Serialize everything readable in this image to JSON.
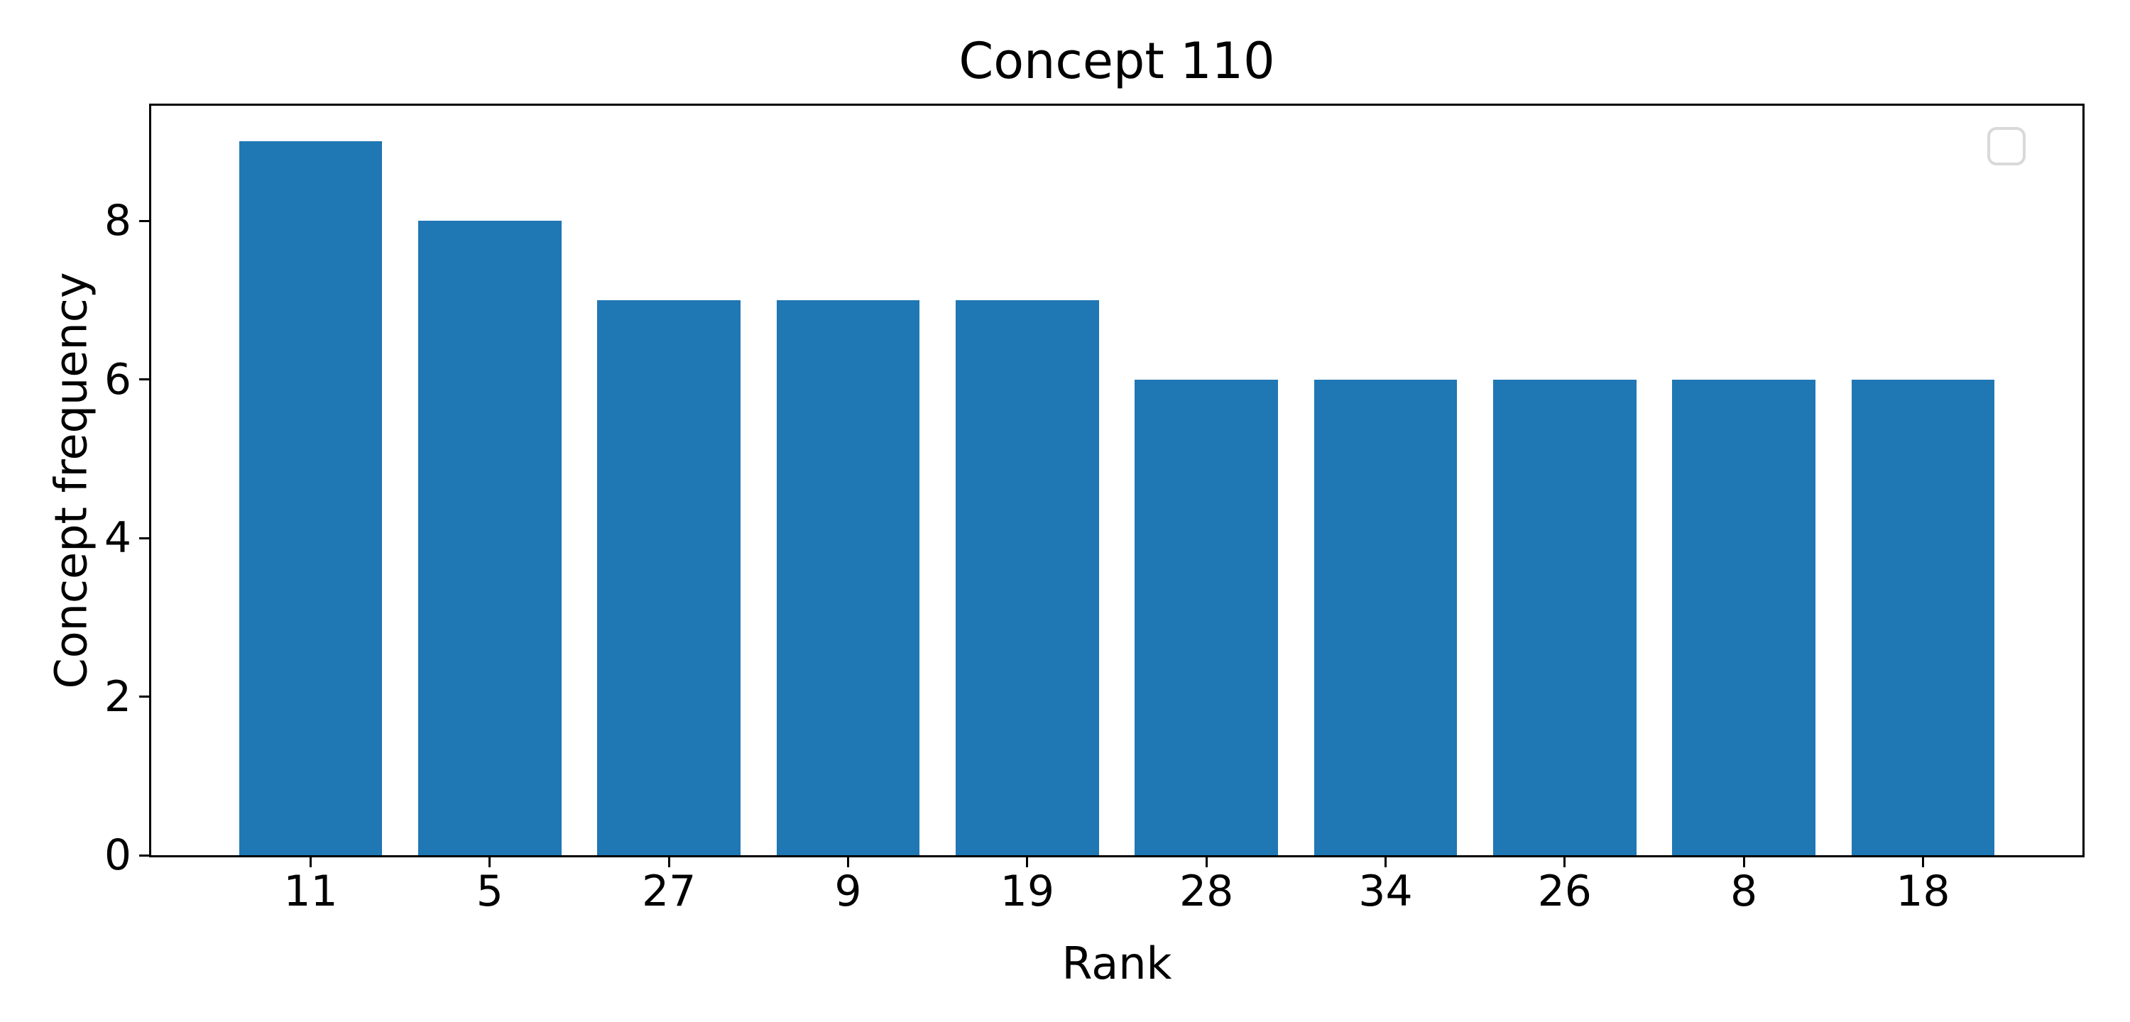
{
  "chart_data": {
    "type": "bar",
    "title": "Concept 110",
    "xlabel": "Rank",
    "ylabel": "Concept frequency",
    "categories": [
      "11",
      "5",
      "27",
      "9",
      "19",
      "28",
      "34",
      "26",
      "8",
      "18"
    ],
    "values": [
      9,
      8,
      7,
      7,
      7,
      6,
      6,
      6,
      6,
      6
    ],
    "bar_color": "#1f77b4",
    "bar_width_units": 0.8,
    "x_margin_fraction": 0.05,
    "ylim": [
      0,
      9.45
    ],
    "yticks": [
      0,
      2,
      4,
      6,
      8
    ],
    "grid": false,
    "legend": {
      "visible": true,
      "entries": [],
      "position": "upper-right",
      "border_color": "#d9d9d9"
    },
    "spine_color": "#000000",
    "background_color": "#ffffff"
  }
}
